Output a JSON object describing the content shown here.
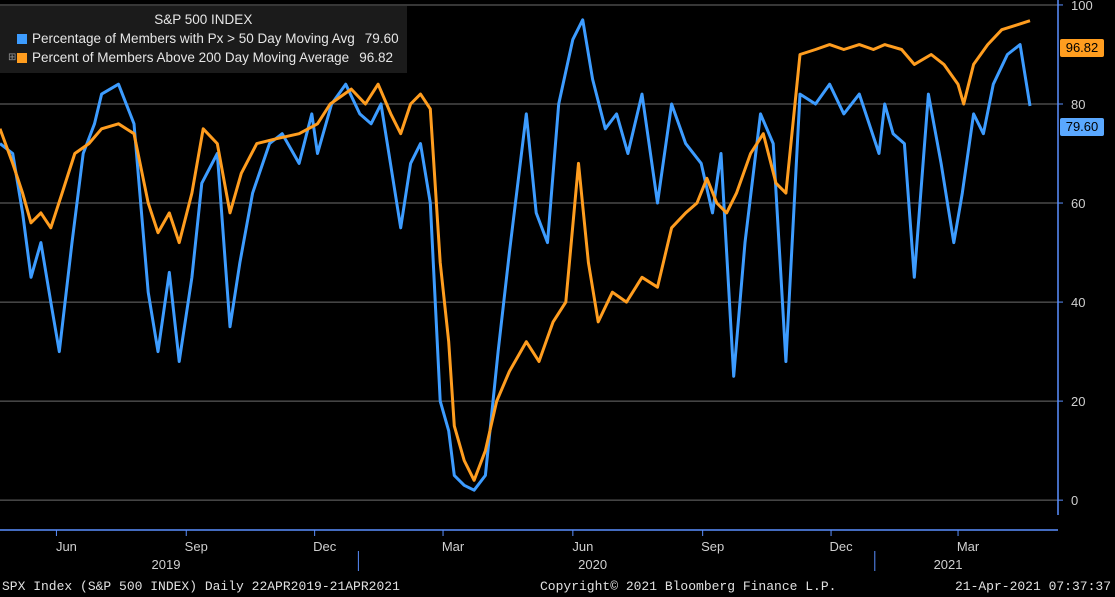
{
  "chart_data": {
    "type": "line",
    "title": "S&P 500 INDEX",
    "x_range": [
      "22APR2019",
      "21APR2021"
    ],
    "month_ticks": [
      "Jun",
      "Sep",
      "Dec",
      "Mar",
      "Jun",
      "Sep",
      "Dec",
      "Mar"
    ],
    "year_labels": [
      "2019",
      "2020",
      "2021"
    ],
    "y_ticks": [
      0,
      20,
      40,
      60,
      80,
      100
    ],
    "ylim": [
      -3,
      101
    ],
    "grid": true,
    "legend_position": "top-left",
    "series": [
      {
        "name": "Percentage of Members with Px > 50 Day Moving Avg",
        "last_value": "79.60",
        "color": "#3d9cff",
        "points": [
          [
            "2019-04-22",
            72
          ],
          [
            "2019-05-01",
            70
          ],
          [
            "2019-05-08",
            58
          ],
          [
            "2019-05-14",
            45
          ],
          [
            "2019-05-21",
            52
          ],
          [
            "2019-05-28",
            40
          ],
          [
            "2019-06-03",
            30
          ],
          [
            "2019-06-12",
            52
          ],
          [
            "2019-06-20",
            70
          ],
          [
            "2019-06-28",
            76
          ],
          [
            "2019-07-03",
            82
          ],
          [
            "2019-07-15",
            84
          ],
          [
            "2019-07-26",
            76
          ],
          [
            "2019-08-05",
            42
          ],
          [
            "2019-08-12",
            30
          ],
          [
            "2019-08-20",
            46
          ],
          [
            "2019-08-27",
            28
          ],
          [
            "2019-09-05",
            45
          ],
          [
            "2019-09-12",
            64
          ],
          [
            "2019-09-23",
            70
          ],
          [
            "2019-10-02",
            35
          ],
          [
            "2019-10-09",
            48
          ],
          [
            "2019-10-18",
            62
          ],
          [
            "2019-10-30",
            72
          ],
          [
            "2019-11-08",
            74
          ],
          [
            "2019-11-20",
            68
          ],
          [
            "2019-11-29",
            78
          ],
          [
            "2019-12-03",
            70
          ],
          [
            "2019-12-13",
            80
          ],
          [
            "2019-12-23",
            84
          ],
          [
            "2020-01-02",
            78
          ],
          [
            "2020-01-10",
            76
          ],
          [
            "2020-01-17",
            80
          ],
          [
            "2020-01-31",
            55
          ],
          [
            "2020-02-07",
            68
          ],
          [
            "2020-02-14",
            72
          ],
          [
            "2020-02-21",
            60
          ],
          [
            "2020-02-28",
            20
          ],
          [
            "2020-03-05",
            14
          ],
          [
            "2020-03-09",
            5
          ],
          [
            "2020-03-16",
            3
          ],
          [
            "2020-03-23",
            2
          ],
          [
            "2020-03-31",
            5
          ],
          [
            "2020-04-09",
            30
          ],
          [
            "2020-04-17",
            50
          ],
          [
            "2020-04-29",
            78
          ],
          [
            "2020-05-06",
            58
          ],
          [
            "2020-05-14",
            52
          ],
          [
            "2020-05-22",
            80
          ],
          [
            "2020-06-01",
            93
          ],
          [
            "2020-06-08",
            97
          ],
          [
            "2020-06-15",
            85
          ],
          [
            "2020-06-24",
            75
          ],
          [
            "2020-07-02",
            78
          ],
          [
            "2020-07-10",
            70
          ],
          [
            "2020-07-20",
            82
          ],
          [
            "2020-07-31",
            60
          ],
          [
            "2020-08-10",
            80
          ],
          [
            "2020-08-20",
            72
          ],
          [
            "2020-08-31",
            68
          ],
          [
            "2020-09-08",
            58
          ],
          [
            "2020-09-14",
            70
          ],
          [
            "2020-09-23",
            25
          ],
          [
            "2020-10-01",
            52
          ],
          [
            "2020-10-12",
            78
          ],
          [
            "2020-10-21",
            72
          ],
          [
            "2020-10-30",
            28
          ],
          [
            "2020-11-09",
            82
          ],
          [
            "2020-11-20",
            80
          ],
          [
            "2020-11-30",
            84
          ],
          [
            "2020-12-10",
            78
          ],
          [
            "2020-12-21",
            82
          ],
          [
            "2021-01-04",
            70
          ],
          [
            "2021-01-08",
            80
          ],
          [
            "2021-01-14",
            74
          ],
          [
            "2021-01-22",
            72
          ],
          [
            "2021-01-29",
            45
          ],
          [
            "2021-02-08",
            82
          ],
          [
            "2021-02-17",
            68
          ],
          [
            "2021-02-26",
            52
          ],
          [
            "2021-03-04",
            62
          ],
          [
            "2021-03-12",
            78
          ],
          [
            "2021-03-19",
            74
          ],
          [
            "2021-03-26",
            84
          ],
          [
            "2021-04-05",
            90
          ],
          [
            "2021-04-14",
            92
          ],
          [
            "2021-04-21",
            79.6
          ]
        ]
      },
      {
        "name": "Percent of Members Above 200 Day Moving Average",
        "last_value": "96.82",
        "color": "#ff9d1f",
        "points": [
          [
            "2019-04-22",
            75
          ],
          [
            "2019-05-01",
            68
          ],
          [
            "2019-05-08",
            62
          ],
          [
            "2019-05-14",
            56
          ],
          [
            "2019-05-21",
            58
          ],
          [
            "2019-05-28",
            55
          ],
          [
            "2019-06-05",
            62
          ],
          [
            "2019-06-14",
            70
          ],
          [
            "2019-06-24",
            72
          ],
          [
            "2019-07-03",
            75
          ],
          [
            "2019-07-15",
            76
          ],
          [
            "2019-07-26",
            74
          ],
          [
            "2019-08-05",
            60
          ],
          [
            "2019-08-12",
            54
          ],
          [
            "2019-08-20",
            58
          ],
          [
            "2019-08-27",
            52
          ],
          [
            "2019-09-05",
            62
          ],
          [
            "2019-09-13",
            75
          ],
          [
            "2019-09-23",
            72
          ],
          [
            "2019-10-02",
            58
          ],
          [
            "2019-10-10",
            66
          ],
          [
            "2019-10-21",
            72
          ],
          [
            "2019-11-04",
            73
          ],
          [
            "2019-11-20",
            74
          ],
          [
            "2019-12-03",
            76
          ],
          [
            "2019-12-12",
            80
          ],
          [
            "2019-12-27",
            83
          ],
          [
            "2020-01-06",
            80
          ],
          [
            "2020-01-15",
            84
          ],
          [
            "2020-01-24",
            78
          ],
          [
            "2020-01-31",
            74
          ],
          [
            "2020-02-07",
            80
          ],
          [
            "2020-02-14",
            82
          ],
          [
            "2020-02-21",
            79
          ],
          [
            "2020-02-28",
            48
          ],
          [
            "2020-03-05",
            32
          ],
          [
            "2020-03-09",
            15
          ],
          [
            "2020-03-16",
            8
          ],
          [
            "2020-03-23",
            4
          ],
          [
            "2020-03-31",
            10
          ],
          [
            "2020-04-08",
            20
          ],
          [
            "2020-04-17",
            26
          ],
          [
            "2020-04-29",
            32
          ],
          [
            "2020-05-08",
            28
          ],
          [
            "2020-05-18",
            36
          ],
          [
            "2020-05-27",
            40
          ],
          [
            "2020-06-05",
            68
          ],
          [
            "2020-06-12",
            48
          ],
          [
            "2020-06-19",
            36
          ],
          [
            "2020-06-29",
            42
          ],
          [
            "2020-07-09",
            40
          ],
          [
            "2020-07-20",
            45
          ],
          [
            "2020-07-31",
            43
          ],
          [
            "2020-08-10",
            55
          ],
          [
            "2020-08-20",
            58
          ],
          [
            "2020-08-28",
            60
          ],
          [
            "2020-09-04",
            65
          ],
          [
            "2020-09-11",
            60
          ],
          [
            "2020-09-18",
            58
          ],
          [
            "2020-09-25",
            62
          ],
          [
            "2020-10-05",
            70
          ],
          [
            "2020-10-14",
            74
          ],
          [
            "2020-10-23",
            64
          ],
          [
            "2020-10-30",
            62
          ],
          [
            "2020-11-09",
            90
          ],
          [
            "2020-11-20",
            91
          ],
          [
            "2020-11-30",
            92
          ],
          [
            "2020-12-10",
            91
          ],
          [
            "2020-12-21",
            92
          ],
          [
            "2020-12-31",
            91
          ],
          [
            "2021-01-08",
            92
          ],
          [
            "2021-01-20",
            91
          ],
          [
            "2021-01-29",
            88
          ],
          [
            "2021-02-10",
            90
          ],
          [
            "2021-02-19",
            88
          ],
          [
            "2021-03-01",
            84
          ],
          [
            "2021-03-05",
            80
          ],
          [
            "2021-03-12",
            88
          ],
          [
            "2021-03-22",
            92
          ],
          [
            "2021-04-01",
            95
          ],
          [
            "2021-04-12",
            96
          ],
          [
            "2021-04-21",
            96.82
          ]
        ]
      }
    ]
  },
  "footer": {
    "left": "SPX Index (S&P 500 INDEX)  Daily 22APR2019-21APR2021",
    "center": "Copyright© 2021 Bloomberg Finance L.P.",
    "right": "21-Apr-2021 07:37:37"
  },
  "colors": {
    "background": "#000000",
    "grid": "#7a7a7a",
    "axis": "#5a8fff"
  }
}
